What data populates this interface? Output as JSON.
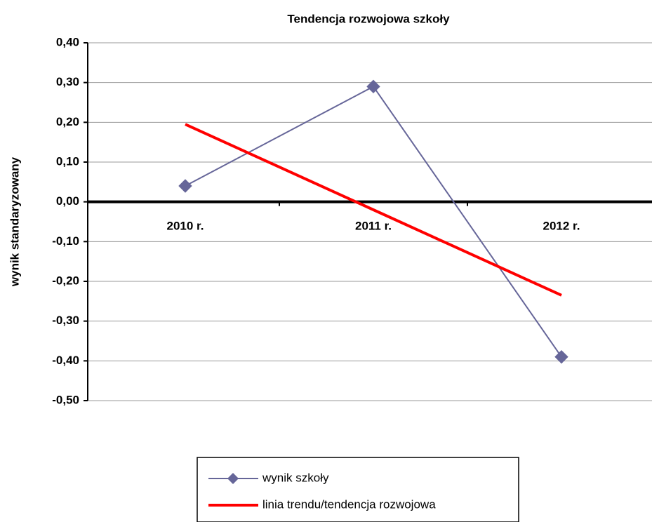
{
  "chart_data": {
    "type": "line",
    "title": "Tendencja rozwojowa szkoły",
    "y_label": "wynik standaryzowany",
    "categories": [
      "2010 r.",
      "2011 r.",
      "2012 r."
    ],
    "series": [
      {
        "name": "wynik szkoły",
        "color": "#666699",
        "values": [
          0.04,
          0.29,
          -0.39
        ],
        "marker": "diamond",
        "width": 2
      },
      {
        "name": "linia trendu/tendencja rozwojowa",
        "color": "#ff0000",
        "values": [
          0.195,
          -0.02,
          -0.235
        ],
        "marker": "none",
        "width": 4
      }
    ],
    "ylim": [
      -0.5,
      0.4
    ],
    "yticks": [
      {
        "value": 0.4,
        "label": "0,40"
      },
      {
        "value": 0.3,
        "label": "0,30"
      },
      {
        "value": 0.2,
        "label": "0,20"
      },
      {
        "value": 0.1,
        "label": "0,10"
      },
      {
        "value": 0,
        "label": "0,00"
      },
      {
        "value": -0.1,
        "label": "-0,10"
      },
      {
        "value": -0.2,
        "label": "-0,20"
      },
      {
        "value": -0.3,
        "label": "-0,30"
      },
      {
        "value": -0.4,
        "label": "-0,40"
      },
      {
        "value": -0.5,
        "label": "-0,50"
      }
    ],
    "grid": true,
    "legend": "bottom"
  }
}
